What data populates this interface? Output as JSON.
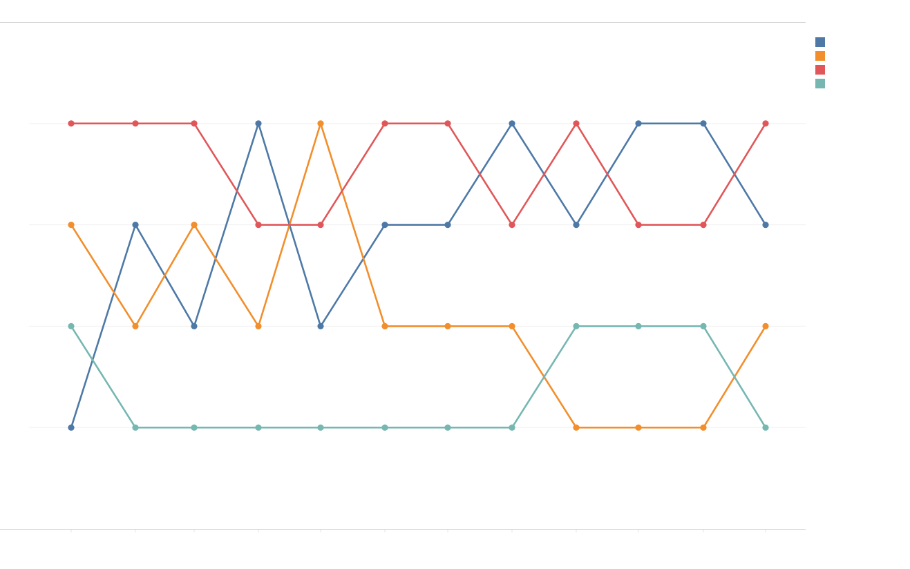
{
  "chart_data": {
    "type": "line",
    "title": "",
    "xlabel": "",
    "ylabel": "",
    "x": [
      1,
      2,
      3,
      4,
      5,
      6,
      7,
      8,
      9,
      10,
      11,
      12
    ],
    "ylim": [
      0,
      5
    ],
    "y_inverted": true,
    "grid": true,
    "legend": "top-right",
    "series": [
      {
        "color": "#4e79a7",
        "values": [
          4,
          2,
          3,
          1,
          3,
          2,
          2,
          1,
          2,
          1,
          1,
          2
        ]
      },
      {
        "color": "#f28e2b",
        "values": [
          2,
          3,
          2,
          3,
          1,
          3,
          3,
          3,
          4,
          4,
          4,
          3
        ]
      },
      {
        "color": "#e15759",
        "values": [
          1,
          1,
          1,
          2,
          2,
          1,
          1,
          2,
          1,
          2,
          2,
          1
        ]
      },
      {
        "color": "#76b7b2",
        "values": [
          3,
          4,
          4,
          4,
          4,
          4,
          4,
          4,
          3,
          3,
          3,
          4
        ]
      }
    ]
  }
}
